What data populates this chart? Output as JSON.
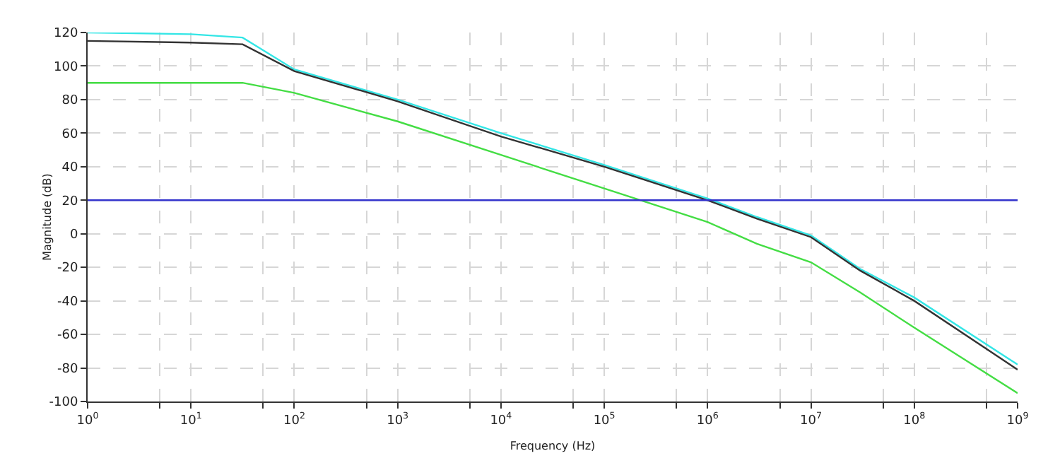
{
  "chart_data": {
    "type": "line",
    "xlabel": "Frequency (Hz)",
    "ylabel": "Magnitude (dB)",
    "log": "x",
    "x": [
      1,
      10,
      31.6,
      100,
      1000,
      10000,
      100000,
      1000000,
      3000000,
      10000000,
      30000000,
      100000000,
      1000000000
    ],
    "series": [
      {
        "color": "#33e6e6",
        "values": [
          120,
          119,
          117,
          98,
          80,
          60,
          41,
          21,
          10,
          -1,
          -21,
          -38,
          -78
        ]
      },
      {
        "color": "#333333",
        "values": [
          115,
          114,
          113,
          97,
          79,
          58,
          40,
          20,
          9,
          -2,
          -22,
          -40,
          -81
        ]
      },
      {
        "color": "#44dd44",
        "values": [
          90,
          90,
          90,
          84,
          67,
          47,
          27,
          7,
          -6,
          -17,
          -35,
          -56,
          -95
        ]
      }
    ],
    "ref_lines": [
      {
        "axis": "y",
        "value": 20,
        "color": "#3333cc"
      }
    ],
    "xlim": [
      1,
      1000000000
    ],
    "ylim": [
      -100,
      120
    ],
    "xticks": [
      {
        "value": 1,
        "label": "10$^{0}$"
      },
      {
        "value": 5,
        "label": null
      },
      {
        "value": 10,
        "label": "10$^{1}$"
      },
      {
        "value": 50,
        "label": null
      },
      {
        "value": 100,
        "label": "10$^{2}$"
      },
      {
        "value": 500,
        "label": null
      },
      {
        "value": 1000,
        "label": "10$^{3}$"
      },
      {
        "value": 5000,
        "label": null
      },
      {
        "value": 10000,
        "label": "10$^{4}$"
      },
      {
        "value": 50000,
        "label": null
      },
      {
        "value": 100000,
        "label": "10$^{5}$"
      },
      {
        "value": 500000,
        "label": null
      },
      {
        "value": 1000000,
        "label": "10$^{6}$"
      },
      {
        "value": 5000000,
        "label": null
      },
      {
        "value": 10000000,
        "label": "10$^{7}$"
      },
      {
        "value": 50000000,
        "label": null
      },
      {
        "value": 100000000,
        "label": "10$^{8}$"
      },
      {
        "value": 500000000,
        "label": null
      },
      {
        "value": 1000000000,
        "label": "10$^{9}$"
      }
    ],
    "yticks": [
      -100,
      -80,
      -60,
      -40,
      -20,
      0,
      20,
      40,
      60,
      80,
      100,
      120
    ],
    "grid": true,
    "marker": "none",
    "line_style": "solid"
  }
}
